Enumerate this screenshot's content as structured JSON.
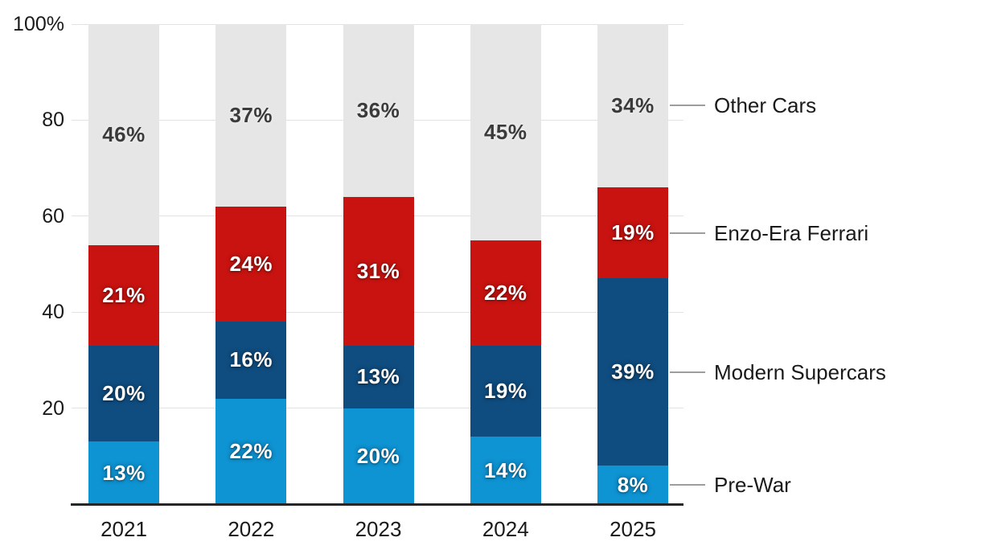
{
  "chart_data": {
    "type": "bar",
    "variant": "stacked-percentage",
    "title": "",
    "xlabel": "",
    "ylabel": "",
    "categories": [
      "2021",
      "2022",
      "2023",
      "2024",
      "2025"
    ],
    "series": [
      {
        "name": "Pre-War",
        "color": "#0e93d3",
        "label_style": "light",
        "values": [
          13,
          22,
          20,
          14,
          8
        ]
      },
      {
        "name": "Modern Supercars",
        "color": "#0f4c7f",
        "label_style": "light",
        "values": [
          20,
          16,
          13,
          19,
          39
        ]
      },
      {
        "name": "Enzo-Era Ferrari",
        "color": "#c91310",
        "label_style": "light",
        "values": [
          21,
          24,
          31,
          22,
          19
        ]
      },
      {
        "name": "Other Cars",
        "color": "#e6e6e6",
        "label_style": "dark",
        "values": [
          46,
          37,
          36,
          45,
          34
        ]
      }
    ],
    "data_label_suffix": "%",
    "y_axis": {
      "tick_labels": [
        "100%",
        "80",
        "60",
        "40",
        "20"
      ],
      "tick_values": [
        100,
        80,
        60,
        40,
        20
      ],
      "min": 0,
      "max": 100,
      "grid": true
    },
    "legend": {
      "position": "right",
      "entries": [
        "Other Cars",
        "Enzo-Era Ferrari",
        "Modern Supercars",
        "Pre-War"
      ]
    },
    "colors": {
      "axis_line": "#262626",
      "gridline": "#e2e2e2",
      "tick_text": "#1a1a1a",
      "legend_text": "#1a1a1a",
      "legend_connector": "#9d9d9d"
    }
  }
}
